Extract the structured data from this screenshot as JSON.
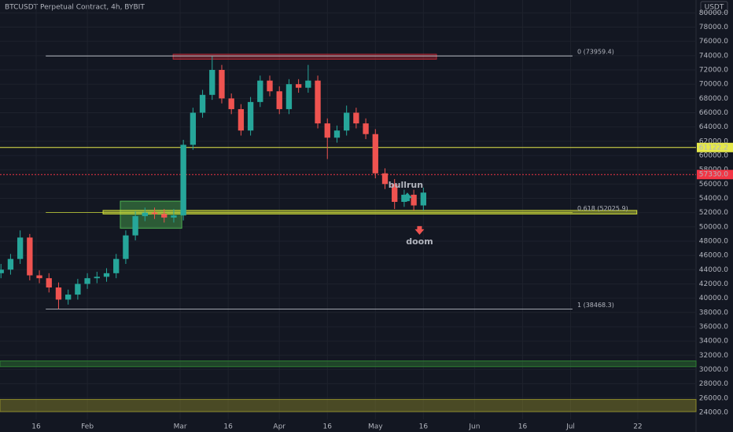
{
  "chart_data": {
    "type": "candlestick",
    "title": "BTCUSDT Perpetual Contract, 4h, BYBIT",
    "currency": "USDT",
    "up_color": "#26a69a",
    "down_color": "#ef5350",
    "x": [
      4,
      7,
      10,
      13,
      16,
      19,
      22,
      25,
      28,
      31,
      34,
      37,
      40,
      43,
      46,
      49,
      52,
      55,
      58,
      61,
      64,
      67,
      70,
      73,
      76,
      79,
      82,
      85,
      88,
      91,
      94,
      97,
      100,
      103,
      106,
      109,
      112,
      115,
      118,
      121,
      124,
      127,
      130,
      133,
      136
    ],
    "open": [
      43500,
      44000,
      45500,
      48500,
      43200,
      42800,
      41500,
      39800,
      40500,
      42000,
      42800,
      43000,
      43500,
      45500,
      48800,
      51500,
      52000,
      51800,
      51300,
      51600,
      61500,
      66000,
      68500,
      72000,
      68000,
      66500,
      63500,
      67500,
      70500,
      69000,
      66500,
      70000,
      69500,
      70500,
      64500,
      62500,
      63500,
      66000,
      64500,
      63000,
      57500,
      56000,
      53500,
      54500,
      53000
    ],
    "high": [
      44800,
      46200,
      49500,
      49000,
      43900,
      43500,
      42200,
      41200,
      42700,
      43500,
      43700,
      44200,
      46200,
      49500,
      52200,
      52700,
      52700,
      52500,
      52500,
      62200,
      66700,
      69200,
      73900,
      72700,
      68700,
      67200,
      68200,
      71200,
      71200,
      69700,
      70700,
      70700,
      72700,
      71200,
      65200,
      64200,
      67000,
      66700,
      65200,
      63700,
      58200,
      56700,
      55200,
      55200,
      55500
    ],
    "low": [
      42800,
      43300,
      44800,
      42500,
      42100,
      40800,
      38500,
      39100,
      39800,
      41300,
      42100,
      42300,
      42800,
      44800,
      48100,
      50800,
      51100,
      50600,
      50600,
      50900,
      60800,
      65300,
      67800,
      67300,
      65800,
      62800,
      62800,
      66800,
      68300,
      65800,
      65800,
      68800,
      68800,
      63800,
      59500,
      61800,
      62800,
      63800,
      62300,
      56800,
      55300,
      52500,
      52800,
      52300,
      52300
    ],
    "close": [
      44000,
      45500,
      48500,
      43200,
      42800,
      41500,
      39800,
      40500,
      42000,
      42800,
      43000,
      43500,
      45500,
      48800,
      51500,
      52000,
      51800,
      51300,
      51600,
      61500,
      66000,
      68500,
      72000,
      68000,
      66500,
      63500,
      67500,
      70500,
      69000,
      66500,
      70000,
      69500,
      70500,
      64500,
      62500,
      63500,
      66000,
      64500,
      63000,
      57500,
      56000,
      53500,
      54500,
      53000,
      54800
    ],
    "xlim": [
      3.7,
      221.2
    ],
    "xticks": [
      {
        "value": 15,
        "label": "16"
      },
      {
        "value": 31,
        "label": "Feb"
      },
      {
        "value": 60,
        "label": "Mar"
      },
      {
        "value": 75,
        "label": "16"
      },
      {
        "value": 91,
        "label": "Apr"
      },
      {
        "value": 106,
        "label": "16"
      },
      {
        "value": 121,
        "label": "May"
      },
      {
        "value": 136,
        "label": "16"
      },
      {
        "value": 152,
        "label": "Jun"
      },
      {
        "value": 167,
        "label": "16"
      },
      {
        "value": 182,
        "label": "Jul"
      },
      {
        "value": 203,
        "label": "22"
      }
    ],
    "ylim": [
      23000,
      81800
    ],
    "yticks": [
      {
        "value": 24000,
        "label": "24000.0"
      },
      {
        "value": 26000,
        "label": "26000.0"
      },
      {
        "value": 28000,
        "label": "28000.0"
      },
      {
        "value": 30000,
        "label": "30000.0"
      },
      {
        "value": 32000,
        "label": "32000.0"
      },
      {
        "value": 34000,
        "label": "34000.0"
      },
      {
        "value": 36000,
        "label": "36000.0"
      },
      {
        "value": 38000,
        "label": "38000.0"
      },
      {
        "value": 40000,
        "label": "40000.0"
      },
      {
        "value": 42000,
        "label": "42000.0"
      },
      {
        "value": 44000,
        "label": "44000.0"
      },
      {
        "value": 46000,
        "label": "46000.0"
      },
      {
        "value": 48000,
        "label": "48000.0"
      },
      {
        "value": 50000,
        "label": "50000.0"
      },
      {
        "value": 52000,
        "label": "52000.0"
      },
      {
        "value": 54000,
        "label": "54000.0"
      },
      {
        "value": 56000,
        "label": "56000.0"
      },
      {
        "value": 58000,
        "label": "58000.0"
      },
      {
        "value": 60000,
        "label": "60000.0"
      },
      {
        "value": 62000,
        "label": "62000.0"
      },
      {
        "value": 64000,
        "label": "64000.0"
      },
      {
        "value": 66000,
        "label": "66000.0"
      },
      {
        "value": 68000,
        "label": "68000.0"
      },
      {
        "value": 70000,
        "label": "70000.0"
      },
      {
        "value": 72000,
        "label": "72000.0"
      },
      {
        "value": 74000,
        "label": "74000.0"
      },
      {
        "value": 76000,
        "label": "76000.0"
      },
      {
        "value": 78000,
        "label": "78000.0"
      },
      {
        "value": 80000,
        "label": "80000.0"
      }
    ],
    "grid": true,
    "fib_levels": [
      {
        "value": 73959.4,
        "label": "0 (73959.4)",
        "color": "#d1d4dc"
      },
      {
        "value": 52025.9,
        "label": "0.618 (52025.9)",
        "color": "#cddc39"
      },
      {
        "value": 38468.3,
        "label": "1 (38468.3)",
        "color": "#d1d4dc"
      }
    ],
    "fib_x": [
      18,
      182.6
    ],
    "price_lines": [
      {
        "value": 61122.2,
        "label": "61122.2",
        "color": "#e5e84a"
      },
      {
        "value": 57330.0,
        "label": "57330.0",
        "color": "#f23645"
      }
    ],
    "zones": [
      {
        "low": 73500,
        "high": 74200,
        "x0": 57.8,
        "x1": 140.1,
        "color": "#b22833"
      },
      {
        "low": 49800,
        "high": 53600,
        "x0": 41.3,
        "x1": 60.5,
        "color": "#4caf50"
      },
      {
        "low": 51800,
        "high": 52300,
        "x0": 35.9,
        "x1": 202.7,
        "color": "#cddc39"
      },
      {
        "low": 30400,
        "high": 31200,
        "x0": 3.7,
        "x1": 221.2,
        "color": "#2e7d32"
      },
      {
        "low": 24100,
        "high": 25800,
        "x0": 3.7,
        "x1": 221.2,
        "color": "#8d8a2a"
      }
    ],
    "annotations": [
      {
        "text": "bullrun",
        "x": 130.5,
        "y": 55800,
        "color": "#e5c63a"
      },
      {
        "text": "doom",
        "x": 134.8,
        "y": 47900,
        "color": "#e5c63a"
      }
    ]
  }
}
